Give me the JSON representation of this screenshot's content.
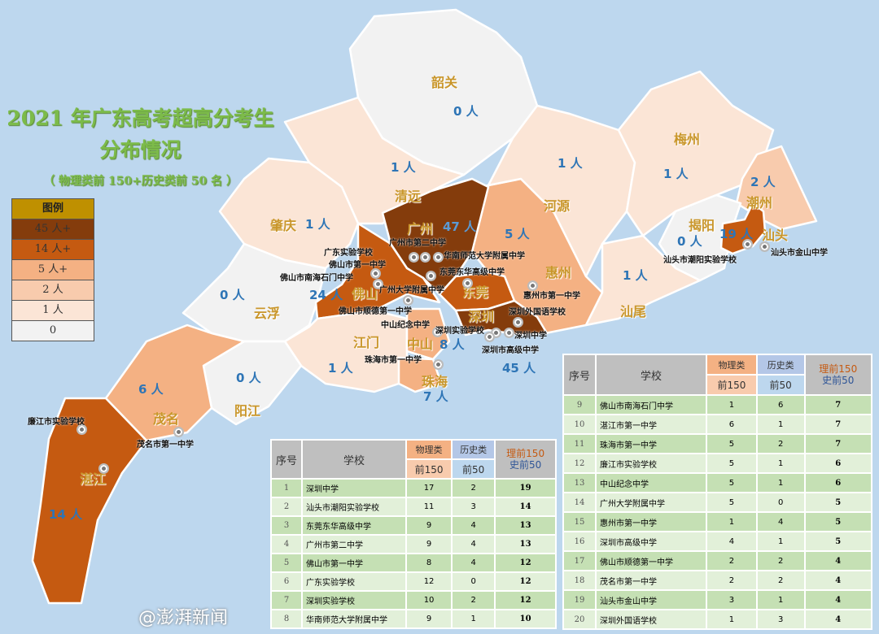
{
  "title": {
    "line1": "2021 年广东高考超高分考生",
    "line2": "分布情况",
    "subtitle": "（ 物理类前 150+历史类前 50 名 ）"
  },
  "legend": {
    "heading": "图例",
    "items": [
      {
        "label": "45 人+",
        "color": "#843c0c"
      },
      {
        "label": "14 人+",
        "color": "#c55a11"
      },
      {
        "label": "5 人+",
        "color": "#f4b183"
      },
      {
        "label": "2 人",
        "color": "#f8cbad"
      },
      {
        "label": "1 人",
        "color": "#fbe5d6"
      },
      {
        "label": "0",
        "color": "#f2f2f2"
      }
    ],
    "heading_color": "#bf9000"
  },
  "regions": {
    "shaoguan": {
      "name": "韶关",
      "count": "0 人"
    },
    "qingyuan": {
      "name": "清远",
      "count": "1 人"
    },
    "zhaoqing": {
      "name": "肇庆",
      "count": "1 人"
    },
    "guangzhou": {
      "name": "广州",
      "count": "47 人"
    },
    "foshan": {
      "name": "佛山",
      "count": "24 人"
    },
    "dongguan": {
      "name": "东莞"
    },
    "shenzhen": {
      "name": "深圳",
      "count": "45 人"
    },
    "huizhou": {
      "name": "惠州",
      "count": "5 人"
    },
    "heyuan": {
      "name": "河源",
      "count": "1 人"
    },
    "meizhou": {
      "name": "梅州",
      "count": "1 人"
    },
    "chaozhou": {
      "name": "潮州",
      "count": "2 人"
    },
    "jieyang": {
      "name": "揭阳",
      "count": "0 人"
    },
    "shantou": {
      "name": "汕头",
      "count": "19 人"
    },
    "shanwei": {
      "name": "汕尾",
      "count": "1 人"
    },
    "jiangmen": {
      "name": "江门",
      "count": "1 人"
    },
    "zhongshan": {
      "name": "中山",
      "count": "8 人"
    },
    "zhuhai": {
      "name": "珠海",
      "count": "7 人"
    },
    "yunfu": {
      "name": "云浮",
      "count": "0 人"
    },
    "yangjiang": {
      "name": "阳江",
      "count": "0 人"
    },
    "maoming": {
      "name": "茂名",
      "count": "6 人"
    },
    "zhanjiang": {
      "name": "湛江",
      "count": "14 人"
    }
  },
  "schools_on_map": [
    "广州市第二中学",
    "广东实验学校",
    "华南师范大学附属中学",
    "佛山市第一中学",
    "东莞东华高级中学",
    "佛山市南海石门中学",
    "广州大学附属中学",
    "惠州市第一中学",
    "佛山市顺德第一中学",
    "深圳外国语学校",
    "中山纪念中学",
    "深圳实验学校",
    "深圳中学",
    "深圳市高级中学",
    "珠海市第一中学",
    "汕头市金山中学",
    "汕头市潮阳实验学校",
    "廉江市实验学校",
    "茂名市第一中学"
  ],
  "table_headers": {
    "no": "序号",
    "school": "学校",
    "phy": "物理类",
    "phy_sub": "前150",
    "his": "历史类",
    "his_sub": "前50",
    "tot1": "理前150",
    "tot2": "史前50"
  },
  "table1": [
    {
      "no": "1",
      "school": "深圳中学",
      "phy": "17",
      "his": "2",
      "total": "19"
    },
    {
      "no": "2",
      "school": "汕头市潮阳实验学校",
      "phy": "11",
      "his": "3",
      "total": "14"
    },
    {
      "no": "3",
      "school": "东莞东华高级中学",
      "phy": "9",
      "his": "4",
      "total": "13"
    },
    {
      "no": "4",
      "school": "广州市第二中学",
      "phy": "9",
      "his": "4",
      "total": "13"
    },
    {
      "no": "5",
      "school": "佛山市第一中学",
      "phy": "8",
      "his": "4",
      "total": "12"
    },
    {
      "no": "6",
      "school": "广东实验学校",
      "phy": "12",
      "his": "0",
      "total": "12"
    },
    {
      "no": "7",
      "school": "深圳实验学校",
      "phy": "10",
      "his": "2",
      "total": "12"
    },
    {
      "no": "8",
      "school": "华南师范大学附属中学",
      "phy": "9",
      "his": "1",
      "total": "10"
    }
  ],
  "table2": [
    {
      "no": "9",
      "school": "佛山市南海石门中学",
      "phy": "1",
      "his": "6",
      "total": "7"
    },
    {
      "no": "10",
      "school": "湛江市第一中学",
      "phy": "6",
      "his": "1",
      "total": "7"
    },
    {
      "no": "11",
      "school": "珠海市第一中学",
      "phy": "5",
      "his": "2",
      "total": "7"
    },
    {
      "no": "12",
      "school": "廉江市实验学校",
      "phy": "5",
      "his": "1",
      "total": "6"
    },
    {
      "no": "13",
      "school": "中山纪念中学",
      "phy": "5",
      "his": "1",
      "total": "6"
    },
    {
      "no": "14",
      "school": "广州大学附属中学",
      "phy": "5",
      "his": "0",
      "total": "5"
    },
    {
      "no": "15",
      "school": "惠州市第一中学",
      "phy": "1",
      "his": "4",
      "total": "5"
    },
    {
      "no": "16",
      "school": "深圳市高级中学",
      "phy": "4",
      "his": "1",
      "total": "5"
    },
    {
      "no": "17",
      "school": "佛山市顺德第一中学",
      "phy": "2",
      "his": "2",
      "total": "4"
    },
    {
      "no": "18",
      "school": "茂名市第一中学",
      "phy": "2",
      "his": "2",
      "total": "4"
    },
    {
      "no": "19",
      "school": "汕头市金山中学",
      "phy": "3",
      "his": "1",
      "total": "4"
    },
    {
      "no": "20",
      "school": "深圳外国语学校",
      "phy": "1",
      "his": "3",
      "total": "4"
    }
  ],
  "watermark": "@澎湃新闻"
}
